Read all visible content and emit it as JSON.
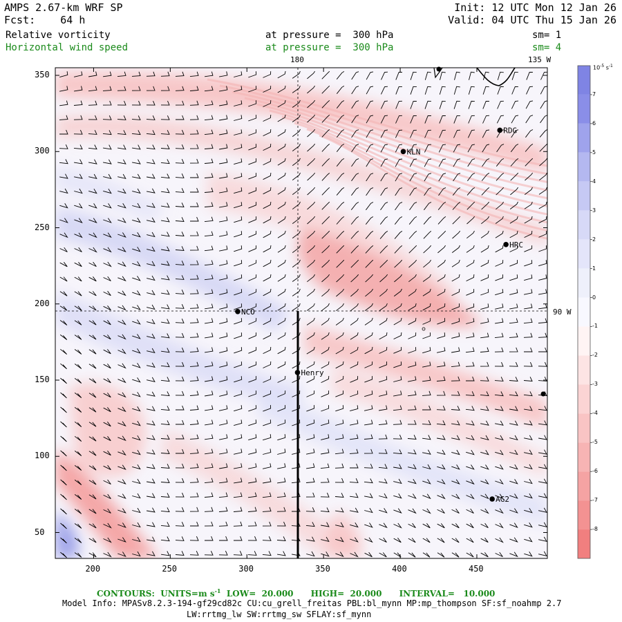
{
  "header": {
    "model": "AMPS 2.67-km WRF SP",
    "forecast_label": "Fcst:",
    "forecast_hours": "64 h",
    "init": "Init: 12 UTC Mon 12 Jan 26",
    "valid": "Valid: 04 UTC Thu 15 Jan 26"
  },
  "fields": [
    {
      "name": "Relative vorticity",
      "level": "at pressure =  300 hPa",
      "smooth": "sm= 1"
    },
    {
      "name": "Horizontal wind speed",
      "level": "at pressure =  300 hPa",
      "smooth": "sm= 4"
    }
  ],
  "axes": {
    "x_ticks": [
      "200",
      "250",
      "300",
      "350",
      "400",
      "450"
    ],
    "y_ticks": [
      "50",
      "100",
      "150",
      "200",
      "250",
      "300",
      "350"
    ],
    "x_range": [
      175,
      496
    ],
    "y_range": [
      33,
      355
    ]
  },
  "map_labels": {
    "lon_180": "180",
    "lon_135w": "135 W",
    "lon_90w": "90 W"
  },
  "stations": [
    {
      "name": "RDG",
      "x": 465,
      "y": 314
    },
    {
      "name": "KLN",
      "x": 402,
      "y": 300
    },
    {
      "name": "HRC",
      "x": 469,
      "y": 239
    },
    {
      "name": "NCO",
      "x": 294,
      "y": 195
    },
    {
      "name": "Henry",
      "x": 333,
      "y": 155
    },
    {
      "name": "AG2",
      "x": 460,
      "y": 72
    }
  ],
  "colorbar": {
    "unit": "10",
    "unit_exp": "-5",
    "unit_rest": "s",
    "unit_rest_exp": "-1",
    "labels": [
      "7",
      "6",
      "5",
      "4",
      "3",
      "2",
      "1",
      "0",
      "-1",
      "-2",
      "-3",
      "-4",
      "-5",
      "-6",
      "-7",
      "-8"
    ],
    "colors": [
      "#8a8ee8",
      "#9fa3ec",
      "#b4b8f0",
      "#c6c9f4",
      "#d7d9f7",
      "#e4e5fa",
      "#eef0fb",
      "#f8f8ff",
      "#fff4f4",
      "#fde4e4",
      "#fbd4d4",
      "#f9c4c4",
      "#f7b4b4",
      "#f5a3a3",
      "#f39292",
      "#f17f7f"
    ]
  },
  "footer": {
    "contours_label": "CONTOURS:",
    "units_label": "UNITS=m s",
    "units_exp": "-1",
    "low": "LOW=  20.000",
    "high": "HIGH=  20.000",
    "interval": "INTERVAL=   10.000",
    "model_info": "Model Info: MPASv8.2.3-194-gf29cd82c CU:cu_grell_freitas PBL:bl_mynn MP:mp_thompson SF:sf_noahmp 2.7",
    "model_info2": "LW:rrtmg_lw SW:rrtmg_sw SFLAY:sf_mynn"
  }
}
